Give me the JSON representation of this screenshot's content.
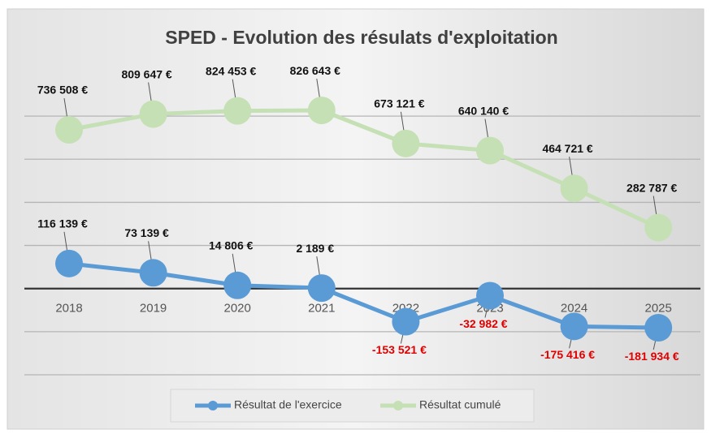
{
  "chart_data": {
    "type": "line",
    "title": "SPED - Evolution des résulats d'exploitation",
    "categories": [
      "2018",
      "2019",
      "2020",
      "2021",
      "2022",
      "2023",
      "2024",
      "2025"
    ],
    "series": [
      {
        "name": "Résultat de l'exercice",
        "color": "#5b9bd5",
        "values": [
          116139,
          73139,
          14806,
          2189,
          -153521,
          -32982,
          -175416,
          -181934
        ],
        "value_labels": [
          "116 139 €",
          "73 139 €",
          "14 806 €",
          "2 189 €",
          "-153 521 €",
          "-32 982 €",
          "-175 416 €",
          "-181 934 €"
        ]
      },
      {
        "name": "Résultat cumulé",
        "color": "#c5e0b4",
        "values": [
          736508,
          809647,
          824453,
          826643,
          673121,
          640140,
          464721,
          282787
        ],
        "value_labels": [
          "736 508 €",
          "809 647 €",
          "824 453 €",
          "826 643 €",
          "673 121 €",
          "640 140 €",
          "464 721 €",
          "282 787 €"
        ]
      }
    ],
    "ylim": [
      -400000,
      1000000
    ],
    "yticks": [
      -400000,
      -200000,
      0,
      200000,
      400000,
      600000,
      800000
    ],
    "grid": true,
    "legend": "bottom"
  }
}
